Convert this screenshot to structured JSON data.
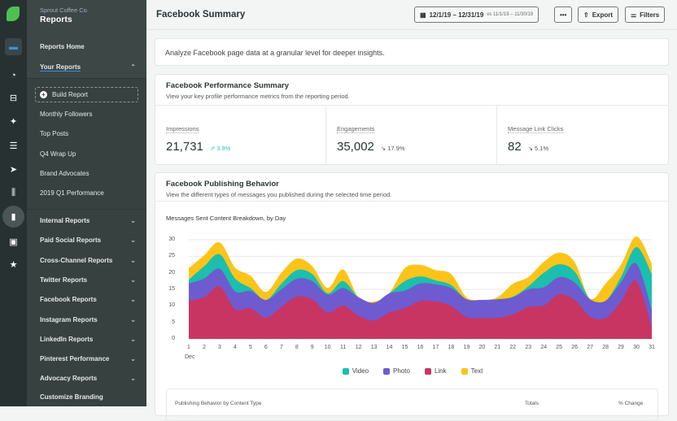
{
  "sidebar": {
    "org": "Sprout Coffee Co.",
    "title": "Reports",
    "reports_home": "Reports Home",
    "your_reports": "Your Reports",
    "build_report": "Build Report",
    "your_items": [
      "Monthly Followers",
      "Top Posts",
      "Q4 Wrap Up",
      "Brand Advocates",
      "2019 Q1 Performance"
    ],
    "groups": [
      "Internal Reports",
      "Paid Social Reports",
      "Cross-Channel Reports",
      "Twitter Reports",
      "Facebook Reports",
      "Instagram Reports",
      "LinkedIn Reports",
      "Pinterest Performance",
      "Advocacy Reports"
    ],
    "customize": "Customize Branding"
  },
  "rail_icons": [
    "folder-icon",
    "gauge-icon",
    "inbox-icon",
    "pin-icon",
    "list-icon",
    "send-icon",
    "listening-icon",
    "reports-icon",
    "bot-icon",
    "star-icon"
  ],
  "header": {
    "title": "Facebook Summary",
    "date_range": "12/1/19 – 12/31/19",
    "compare": "vs 11/1/19 – 11/30/19",
    "more": "•••",
    "export": "Export",
    "filters": "Filters"
  },
  "intro": "Analyze Facebook page data at a granular level for deeper insights.",
  "performance": {
    "title": "Facebook Performance Summary",
    "subtitle": "View your key profile performance metrics from the reporting period.",
    "metrics": [
      {
        "label": "Impressions",
        "value": "21,731",
        "change": "↗ 3.9%",
        "direction": "up"
      },
      {
        "label": "Engagements",
        "value": "35,002",
        "change": "↘ 17.9%",
        "direction": "down"
      },
      {
        "label": "Message Link Clicks",
        "value": "82",
        "change": "↘ 5.1%",
        "direction": "down"
      }
    ]
  },
  "publishing": {
    "title": "Facebook Publishing Behavior",
    "subtitle": "View the different types of messages you published during the selected time period.",
    "table_title": "Publishing Behavior by Content Type",
    "col_totals": "Totals",
    "col_change": "% Change"
  },
  "chart_data": {
    "type": "area",
    "stacked": true,
    "title": "Messages Sent Content Breakdown, by Day",
    "x_sublabel": "Dec",
    "categories": [
      "1",
      "2",
      "3",
      "4",
      "5",
      "6",
      "7",
      "8",
      "9",
      "10",
      "11",
      "12",
      "13",
      "14",
      "15",
      "16",
      "17",
      "18",
      "19",
      "20",
      "21",
      "22",
      "23",
      "24",
      "25",
      "26",
      "27",
      "28",
      "29",
      "30",
      "31"
    ],
    "yticks": [
      "0",
      "5",
      "10",
      "15",
      "20",
      "25",
      "30"
    ],
    "ylim": [
      0,
      30
    ],
    "grid": true,
    "legend": "bottom",
    "series": [
      {
        "name": "Link",
        "color": "#c93562",
        "values": [
          11.5,
          12.6,
          15.9,
          9,
          9.3,
          6.4,
          9.7,
          12.8,
          12,
          8,
          10.1,
          7,
          5.6,
          8,
          9.3,
          11.5,
          11.3,
          10,
          6.6,
          6.3,
          6.4,
          7.4,
          9.7,
          10.1,
          13.5,
          11.8,
          6.8,
          6.3,
          11.3,
          17.5,
          3.5
        ]
      },
      {
        "name": "Photo",
        "color": "#6e5bd0",
        "values": [
          5.3,
          5.7,
          5.3,
          5.4,
          5.2,
          5.4,
          5.3,
          5.4,
          5.5,
          5.4,
          5.3,
          5.6,
          5.3,
          5.8,
          5.3,
          5.3,
          5.2,
          5.4,
          5.4,
          5.5,
          5.6,
          5.2,
          5.3,
          5.5,
          5.2,
          5.3,
          5.2,
          5.2,
          5.8,
          5.3,
          5.4
        ]
      },
      {
        "name": "Video",
        "color": "#1bbfae",
        "values": [
          1.1,
          3.7,
          4.4,
          3.9,
          0.9,
          0,
          1.7,
          2.6,
          2.1,
          0.4,
          2.1,
          0,
          0,
          0,
          2.9,
          2.1,
          1.2,
          0.9,
          0,
          0,
          0,
          0.2,
          0.9,
          4.4,
          3.9,
          3.3,
          0,
          0,
          1.6,
          5,
          10.7
        ]
      },
      {
        "name": "Text",
        "color": "#fcc419",
        "values": [
          3.5,
          3.3,
          3.6,
          3.3,
          3.7,
          2.4,
          3.3,
          3.5,
          2.4,
          1.6,
          3.5,
          0,
          0.4,
          0.2,
          3.9,
          3.5,
          3.1,
          3.3,
          0.6,
          0,
          0.6,
          3.9,
          2.8,
          3.3,
          3.5,
          2.9,
          0.2,
          5.2,
          3.7,
          3.2,
          3.2
        ]
      }
    ],
    "legend_order": [
      "Video",
      "Photo",
      "Link",
      "Text"
    ]
  }
}
